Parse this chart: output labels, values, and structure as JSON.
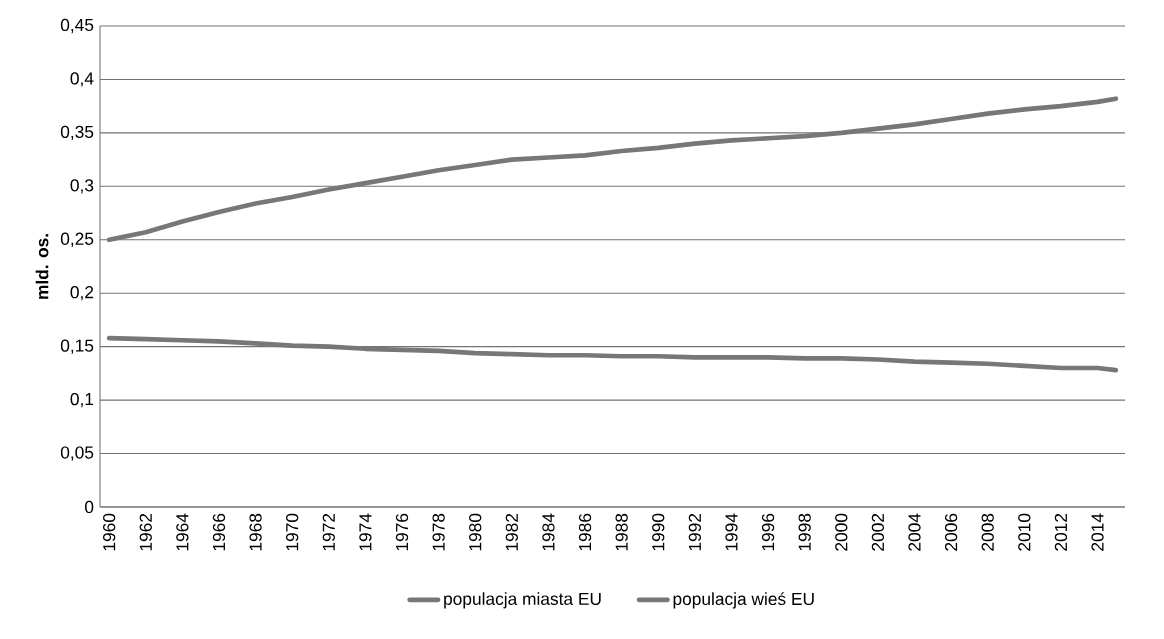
{
  "chart_data": {
    "type": "line",
    "ylabel": "mld. os.",
    "series": [
      {
        "name": "populacja miasta EU",
        "color": "#777777",
        "x": [
          1960,
          1962,
          1964,
          1966,
          1968,
          1970,
          1972,
          1974,
          1976,
          1978,
          1980,
          1982,
          1984,
          1986,
          1988,
          1990,
          1992,
          1994,
          1996,
          1998,
          2000,
          2002,
          2004,
          2006,
          2008,
          2010,
          2012,
          2014,
          2015
        ],
        "values": [
          0.25,
          0.257,
          0.267,
          0.276,
          0.284,
          0.29,
          0.297,
          0.303,
          0.309,
          0.315,
          0.32,
          0.325,
          0.327,
          0.329,
          0.333,
          0.336,
          0.34,
          0.343,
          0.345,
          0.347,
          0.35,
          0.354,
          0.358,
          0.363,
          0.368,
          0.372,
          0.375,
          0.379,
          0.382
        ]
      },
      {
        "name": "populacja wieś EU",
        "color": "#777777",
        "x": [
          1960,
          1962,
          1964,
          1966,
          1968,
          1970,
          1972,
          1974,
          1976,
          1978,
          1980,
          1982,
          1984,
          1986,
          1988,
          1990,
          1992,
          1994,
          1996,
          1998,
          2000,
          2002,
          2004,
          2006,
          2008,
          2010,
          2012,
          2014,
          2015
        ],
        "values": [
          0.158,
          0.157,
          0.156,
          0.155,
          0.153,
          0.151,
          0.15,
          0.148,
          0.147,
          0.146,
          0.144,
          0.143,
          0.142,
          0.142,
          0.141,
          0.141,
          0.14,
          0.14,
          0.14,
          0.139,
          0.139,
          0.138,
          0.136,
          0.135,
          0.134,
          0.132,
          0.13,
          0.13,
          0.128
        ]
      }
    ],
    "xlim": [
      1959.5,
      2015.5
    ],
    "xticks": [
      1960,
      1962,
      1964,
      1966,
      1968,
      1970,
      1972,
      1974,
      1976,
      1978,
      1980,
      1982,
      1984,
      1986,
      1988,
      1990,
      1992,
      1994,
      1996,
      1998,
      2000,
      2002,
      2004,
      2006,
      2008,
      2010,
      2012,
      2014
    ],
    "ylim": [
      0,
      0.45
    ],
    "yticks": [
      0,
      {
        "value": 0.05,
        "label": "0,05"
      },
      {
        "value": 0.1,
        "label": "0,1"
      },
      {
        "value": 0.15,
        "label": "0,15"
      },
      {
        "value": 0.2,
        "label": "0,2"
      },
      {
        "value": 0.25,
        "label": "0,25"
      },
      {
        "value": 0.3,
        "label": "0,3"
      },
      {
        "value": 0.35,
        "label": "0,35"
      },
      {
        "value": 0.4,
        "label": "0,4"
      },
      {
        "value": 0.45,
        "label": "0,45"
      }
    ],
    "grid": "y",
    "legend": "bottom",
    "marker": "none",
    "line_style": "solid"
  }
}
